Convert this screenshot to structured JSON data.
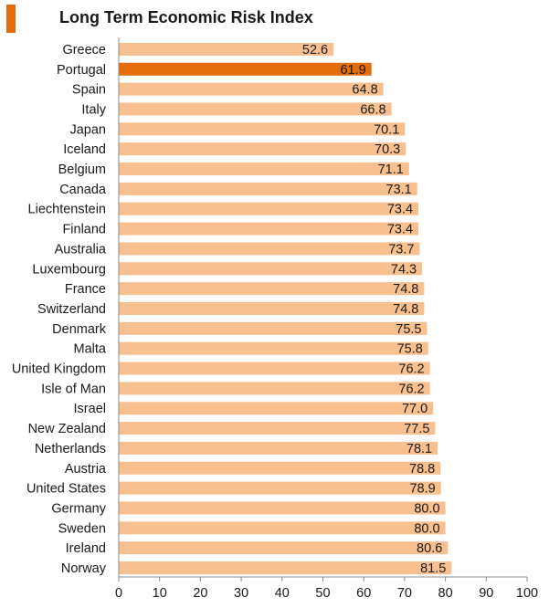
{
  "colors": {
    "bar": "#F9C08F",
    "highlight": "#E46C0A",
    "title_marker": "#E46C0A",
    "axis": "#8c8c8c",
    "text": "#1a1a1a"
  },
  "chart_data": {
    "type": "bar",
    "orientation": "horizontal",
    "title": "Long Term Economic Risk Index",
    "xlim": [
      0,
      100
    ],
    "ticks": [
      "0",
      "10",
      "20",
      "30",
      "40",
      "50",
      "60",
      "70",
      "80",
      "90",
      "100"
    ],
    "tick_values": [
      0,
      10,
      20,
      30,
      40,
      50,
      60,
      70,
      80,
      90,
      100
    ],
    "grid": false,
    "highlight": "Portugal",
    "categories": [
      "Greece",
      "Portugal",
      "Spain",
      "Italy",
      "Japan",
      "Iceland",
      "Belgium",
      "Canada",
      "Liechtenstein",
      "Finland",
      "Australia",
      "Luxembourg",
      "France",
      "Switzerland",
      "Denmark",
      "Malta",
      "United Kingdom",
      "Isle of Man",
      "Israel",
      "New Zealand",
      "Netherlands",
      "Austria",
      "United States",
      "Germany",
      "Sweden",
      "Ireland",
      "Norway"
    ],
    "values": [
      52.6,
      61.9,
      64.8,
      66.8,
      70.1,
      70.3,
      71.1,
      73.1,
      73.4,
      73.4,
      73.7,
      74.3,
      74.8,
      74.8,
      75.5,
      75.8,
      76.2,
      76.2,
      77.0,
      77.5,
      78.1,
      78.8,
      78.9,
      80.0,
      80.0,
      80.6,
      81.5
    ],
    "value_labels": [
      "52.6",
      "61.9",
      "64.8",
      "66.8",
      "70.1",
      "70.3",
      "71.1",
      "73.1",
      "73.4",
      "73.4",
      "73.7",
      "74.3",
      "74.8",
      "74.8",
      "75.5",
      "75.8",
      "76.2",
      "76.2",
      "77.0",
      "77.5",
      "78.1",
      "78.8",
      "78.9",
      "80.0",
      "80.0",
      "80.6",
      "81.5"
    ]
  }
}
